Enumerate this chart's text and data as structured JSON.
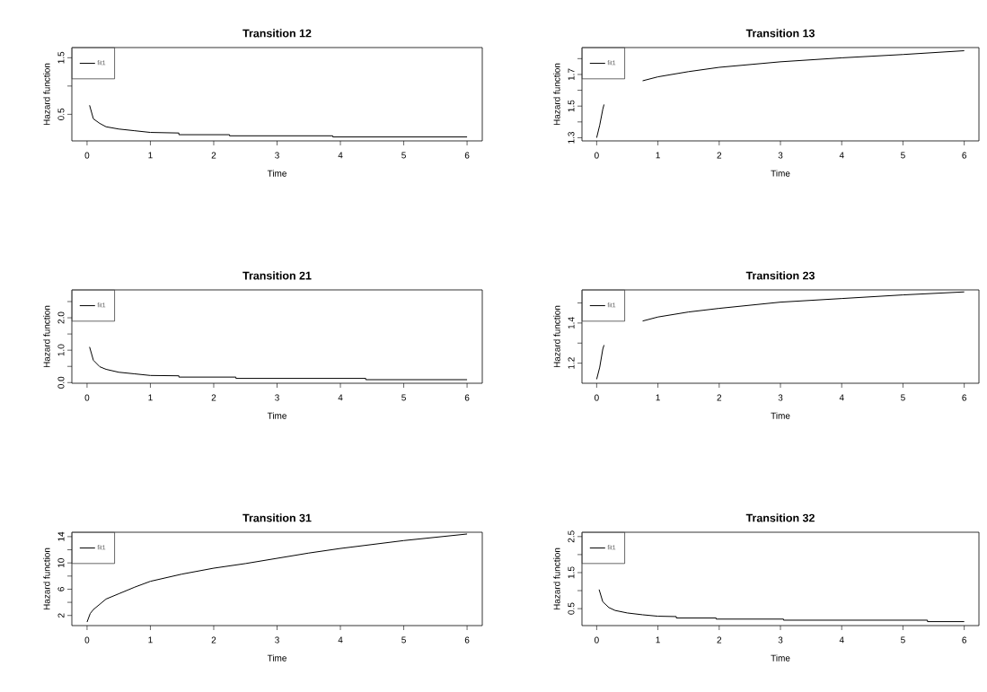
{
  "chart_data": [
    {
      "type": "line",
      "title": "Transition 12",
      "xlabel": "Time",
      "ylabel": "Hazard function",
      "legend": "top left",
      "line_style": "solid",
      "xlim": [
        -0.24,
        6.24
      ],
      "xticks": [
        0,
        1,
        2,
        3,
        4,
        5,
        6
      ],
      "ylim": [
        0.03,
        1.68
      ],
      "yticks": [
        0.5,
        {
          "value": 1.0,
          "label": null
        },
        1.5
      ],
      "series": [
        {
          "name": "fit1",
          "color": "#000000",
          "x": [
            0.04,
            0.1,
            0.2,
            0.3,
            0.5,
            0.75,
            1.0,
            1.45,
            1.45,
            2.25,
            2.25,
            3.88,
            3.88,
            6
          ],
          "values": [
            0.66,
            0.42,
            0.34,
            0.28,
            0.24,
            0.21,
            0.18,
            0.17,
            0.14,
            0.14,
            0.12,
            0.12,
            0.1,
            0.1
          ]
        }
      ]
    },
    {
      "type": "line",
      "title": "Transition 13",
      "xlabel": "Time",
      "ylabel": "Hazard function",
      "legend": "top left",
      "line_style": "solid",
      "xlim": [
        -0.24,
        6.24
      ],
      "xticks": [
        0,
        1,
        2,
        3,
        4,
        5,
        6
      ],
      "ylim": [
        1.28,
        1.87
      ],
      "yticks": [
        1.3,
        {
          "value": 1.4,
          "label": null
        },
        1.5,
        {
          "value": 1.6,
          "label": null
        },
        1.7,
        {
          "value": 1.8,
          "label": null
        }
      ],
      "series": [
        {
          "name": "fit1",
          "color": "#000000",
          "x": [
            0,
            0.05,
            0.1,
            0.12,
            0.4,
            0.75,
            1,
            1.5,
            2,
            3,
            4,
            5,
            6
          ],
          "values": [
            1.3,
            1.38,
            1.48,
            1.51,
            null,
            1.66,
            1.685,
            1.718,
            1.745,
            1.78,
            1.805,
            1.826,
            1.85
          ]
        }
      ]
    },
    {
      "type": "line",
      "title": "Transition 21",
      "xlabel": "Time",
      "ylabel": "Hazard function",
      "legend": "top left",
      "line_style": "solid",
      "xlim": [
        -0.24,
        6.24
      ],
      "xticks": [
        0,
        1,
        2,
        3,
        4,
        5,
        6
      ],
      "ylim": [
        -0.02,
        2.86
      ],
      "yticks": [
        {
          "value": 0,
          "label": "0.0"
        },
        {
          "value": 0.5,
          "label": null
        },
        {
          "value": 1,
          "label": "1.0"
        },
        {
          "value": 1.5,
          "label": null
        },
        {
          "value": 2,
          "label": "2.0"
        },
        {
          "value": 2.5,
          "label": null
        }
      ],
      "series": [
        {
          "name": "fit1",
          "color": "#000000",
          "x": [
            0.04,
            0.1,
            0.2,
            0.3,
            0.5,
            0.75,
            1,
            1.45,
            1.45,
            2.35,
            2.35,
            4.4,
            4.4,
            6
          ],
          "values": [
            1.1,
            0.69,
            0.49,
            0.41,
            0.32,
            0.27,
            0.22,
            0.21,
            0.17,
            0.17,
            0.13,
            0.13,
            0.09,
            0.09
          ]
        }
      ]
    },
    {
      "type": "line",
      "title": "Transition 23",
      "xlabel": "Time",
      "ylabel": "Hazard function",
      "legend": "top left",
      "line_style": "solid",
      "xlim": [
        -0.24,
        6.24
      ],
      "xticks": [
        0,
        1,
        2,
        3,
        4,
        5,
        6
      ],
      "ylim": [
        1.1,
        1.565
      ],
      "yticks": [
        1.2,
        {
          "value": 1.3,
          "label": null
        },
        1.4,
        {
          "value": 1.5,
          "label": null
        }
      ],
      "series": [
        {
          "name": "fit1",
          "color": "#000000",
          "x": [
            0,
            0.05,
            0.1,
            0.12,
            0.4,
            0.75,
            1,
            1.5,
            2,
            3,
            4,
            5,
            6
          ],
          "values": [
            1.12,
            1.18,
            1.27,
            1.29,
            null,
            1.41,
            1.43,
            1.455,
            1.473,
            1.504,
            1.522,
            1.54,
            1.555
          ]
        }
      ]
    },
    {
      "type": "line",
      "title": "Transition 31",
      "xlabel": "Time",
      "ylabel": "Hazard function",
      "legend": "top left",
      "line_style": "solid",
      "xlim": [
        -0.24,
        6.24
      ],
      "xticks": [
        0,
        1,
        2,
        3,
        4,
        5,
        6
      ],
      "ylim": [
        0.46,
        14.67
      ],
      "yticks": [
        2,
        {
          "value": 4,
          "label": null
        },
        6,
        {
          "value": 8,
          "label": null
        },
        10,
        {
          "value": 12,
          "label": null
        },
        14
      ],
      "series": [
        {
          "name": "fit1",
          "color": "#000000",
          "x": [
            0,
            0.05,
            0.1,
            0.2,
            0.3,
            0.5,
            0.75,
            1,
            1.5,
            2,
            2.5,
            3,
            3.5,
            4,
            4.5,
            5,
            6
          ],
          "values": [
            1.0,
            2.3,
            2.9,
            3.7,
            4.5,
            5.3,
            6.3,
            7.2,
            8.3,
            9.2,
            9.9,
            10.7,
            11.5,
            12.2,
            12.8,
            13.4,
            14.4
          ]
        }
      ]
    },
    {
      "type": "line",
      "title": "Transition 32",
      "xlabel": "Time",
      "ylabel": "Hazard function",
      "legend": "top left",
      "line_style": "solid",
      "xlim": [
        -0.24,
        6.24
      ],
      "xticks": [
        0,
        1,
        2,
        3,
        4,
        5,
        6
      ],
      "ylim": [
        0.03,
        2.62
      ],
      "yticks": [
        0.5,
        {
          "value": 1.0,
          "label": null
        },
        1.5,
        {
          "value": 2.0,
          "label": null
        },
        2.5
      ],
      "series": [
        {
          "name": "fit1",
          "color": "#000000",
          "x": [
            0.04,
            0.1,
            0.2,
            0.3,
            0.5,
            0.75,
            1,
            1.3,
            1.3,
            1.95,
            1.95,
            3.05,
            3.05,
            5.4,
            5.4,
            6
          ],
          "values": [
            1.03,
            0.69,
            0.53,
            0.45,
            0.38,
            0.33,
            0.29,
            0.28,
            0.24,
            0.24,
            0.21,
            0.21,
            0.18,
            0.18,
            0.14,
            0.14
          ]
        }
      ]
    }
  ]
}
